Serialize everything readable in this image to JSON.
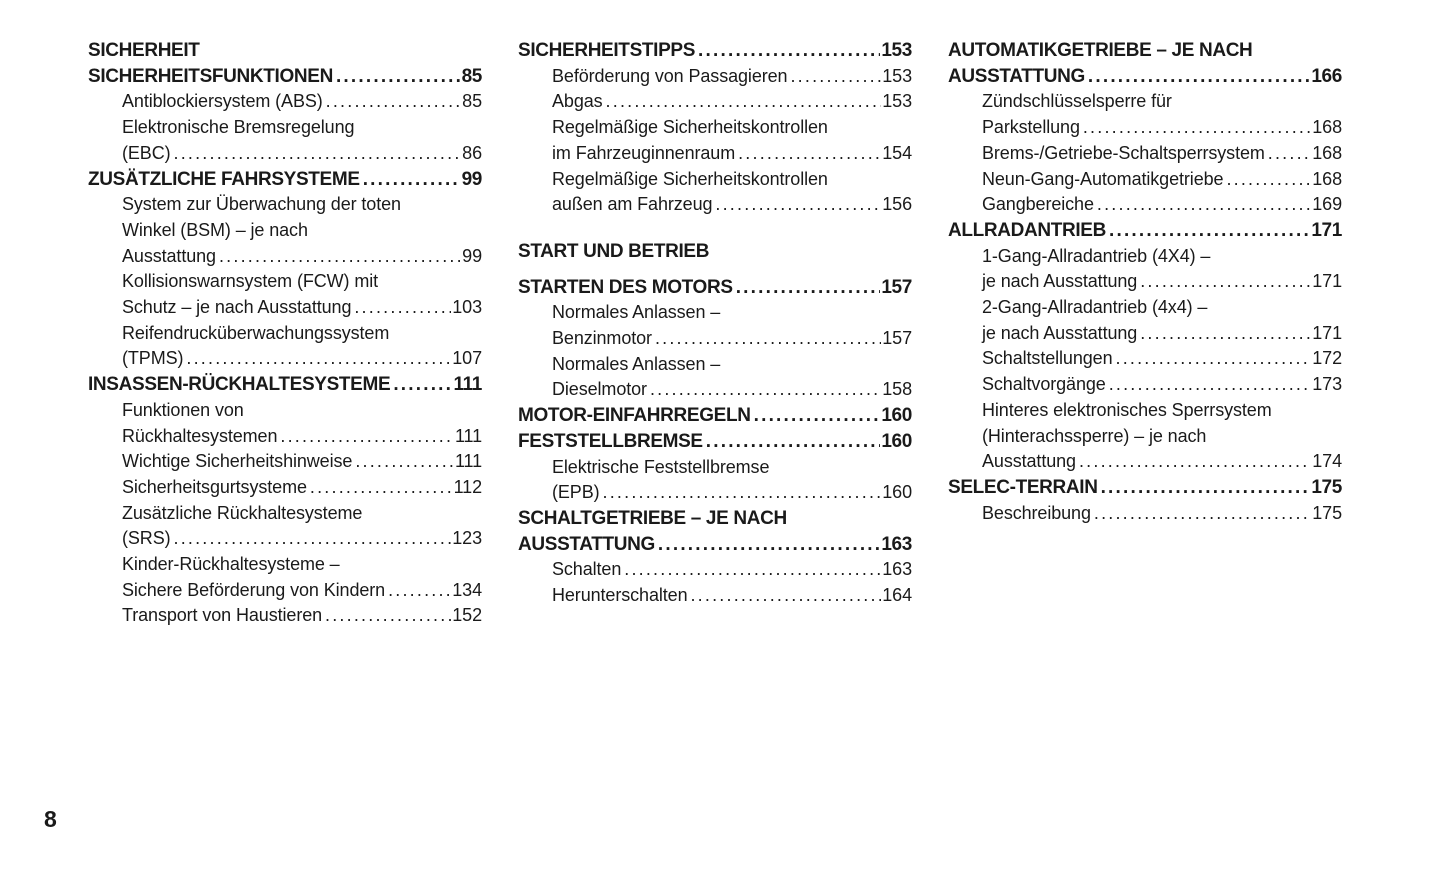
{
  "colors": {
    "ink": "#1a1a1a",
    "background": "#ffffff"
  },
  "footer": {
    "page_number": "8"
  },
  "toc": {
    "columns": [
      {
        "items": [
          {
            "type": "part",
            "lines": [
              "SICHERHEIT"
            ]
          },
          {
            "type": "chapter",
            "lines": [
              "SICHERHEITSFUNKTIONEN"
            ],
            "page": "85"
          },
          {
            "type": "sub",
            "lines": [
              "Antiblockiersystem (ABS)"
            ],
            "page": "85"
          },
          {
            "type": "sub",
            "lines": [
              "Elektronische Bremsregelung",
              "(EBC)"
            ],
            "page": "86"
          },
          {
            "type": "chapter",
            "lines": [
              "ZUSÄTZLICHE FAHRSYSTEME"
            ],
            "page": "99"
          },
          {
            "type": "sub",
            "lines": [
              "System zur Überwachung der toten",
              "Winkel (BSM) – je nach",
              "Ausstattung"
            ],
            "page": "99"
          },
          {
            "type": "sub",
            "lines": [
              "Kollisionswarnsystem (FCW) mit",
              "Schutz – je nach Ausstattung"
            ],
            "page": "103"
          },
          {
            "type": "sub",
            "lines": [
              "Reifendrucküberwachungssystem",
              "(TPMS)"
            ],
            "page": "107"
          },
          {
            "type": "chapter",
            "lines": [
              "INSASSEN-RÜCKHALTESYSTEME"
            ],
            "page": "111"
          },
          {
            "type": "sub",
            "lines": [
              "Funktionen von",
              "Rückhaltesystemen"
            ],
            "page": "111"
          },
          {
            "type": "sub",
            "lines": [
              "Wichtige Sicherheitshinweise"
            ],
            "page": "111"
          },
          {
            "type": "sub",
            "lines": [
              "Sicherheitsgurtsysteme"
            ],
            "page": "112"
          },
          {
            "type": "sub",
            "lines": [
              "Zusätzliche Rückhaltesysteme",
              "(SRS)"
            ],
            "page": "123"
          },
          {
            "type": "sub",
            "lines": [
              "Kinder-Rückhaltesysteme –",
              "Sichere Beförderung von Kindern"
            ],
            "page": "134"
          },
          {
            "type": "sub",
            "lines": [
              "Transport von Haustieren"
            ],
            "page": "152"
          }
        ]
      },
      {
        "items": [
          {
            "type": "chapter",
            "lines": [
              "SICHERHEITSTIPPS"
            ],
            "page": "153"
          },
          {
            "type": "sub",
            "lines": [
              "Beförderung von Passagieren"
            ],
            "page": "153"
          },
          {
            "type": "sub",
            "lines": [
              "Abgas"
            ],
            "page": "153"
          },
          {
            "type": "sub",
            "lines": [
              "Regelmäßige Sicherheitskontrollen",
              "im Fahrzeuginnenraum"
            ],
            "page": "154"
          },
          {
            "type": "sub",
            "lines": [
              "Regelmäßige Sicherheitskontrollen",
              "außen am Fahrzeug"
            ],
            "page": "156"
          },
          {
            "type": "part",
            "lines": [
              "START UND BETRIEB"
            ]
          },
          {
            "type": "chapter",
            "lines": [
              "STARTEN DES MOTORS"
            ],
            "page": "157"
          },
          {
            "type": "sub",
            "lines": [
              "Normales Anlassen –",
              "Benzinmotor"
            ],
            "page": "157"
          },
          {
            "type": "sub",
            "lines": [
              "Normales Anlassen –",
              "Dieselmotor"
            ],
            "page": "158"
          },
          {
            "type": "chapter",
            "lines": [
              "MOTOR-EINFAHRREGELN"
            ],
            "page": "160"
          },
          {
            "type": "chapter",
            "lines": [
              "FESTSTELLBREMSE"
            ],
            "page": "160"
          },
          {
            "type": "sub",
            "lines": [
              "Elektrische Feststellbremse",
              "(EPB)"
            ],
            "page": "160"
          },
          {
            "type": "chapter",
            "lines": [
              "SCHALTGETRIEBE – JE NACH",
              "AUSSTATTUNG"
            ],
            "page": "163"
          },
          {
            "type": "sub",
            "lines": [
              "Schalten"
            ],
            "page": "163"
          },
          {
            "type": "sub",
            "lines": [
              "Herunterschalten"
            ],
            "page": "164"
          }
        ]
      },
      {
        "items": [
          {
            "type": "chapter",
            "lines": [
              "AUTOMATIKGETRIEBE – JE NACH",
              "AUSSTATTUNG"
            ],
            "page": "166"
          },
          {
            "type": "sub",
            "lines": [
              "Zündschlüsselsperre für",
              "Parkstellung"
            ],
            "page": "168"
          },
          {
            "type": "sub",
            "lines": [
              "Brems-/Getriebe-Schaltsperrsystem"
            ],
            "page": "168"
          },
          {
            "type": "sub",
            "lines": [
              "Neun-Gang-Automatikgetriebe"
            ],
            "page": "168"
          },
          {
            "type": "sub",
            "lines": [
              "Gangbereiche"
            ],
            "page": "169"
          },
          {
            "type": "chapter",
            "lines": [
              "ALLRADANTRIEB"
            ],
            "page": "171"
          },
          {
            "type": "sub",
            "lines": [
              "1-Gang-Allradantrieb (4X4) –",
              "je nach Ausstattung"
            ],
            "page": "171"
          },
          {
            "type": "sub",
            "lines": [
              "2-Gang-Allradantrieb (4x4) –",
              "je nach Ausstattung"
            ],
            "page": "171"
          },
          {
            "type": "sub",
            "lines": [
              "Schaltstellungen"
            ],
            "page": "172"
          },
          {
            "type": "sub",
            "lines": [
              "Schaltvorgänge"
            ],
            "page": "173"
          },
          {
            "type": "sub",
            "lines": [
              "Hinteres elektronisches Sperrsystem",
              "(Hinterachssperre) – je nach",
              "Ausstattung"
            ],
            "page": "174"
          },
          {
            "type": "chapter",
            "lines": [
              "SELEC-TERRAIN"
            ],
            "page": "175"
          },
          {
            "type": "sub",
            "lines": [
              "Beschreibung"
            ],
            "page": "175"
          }
        ]
      }
    ]
  }
}
